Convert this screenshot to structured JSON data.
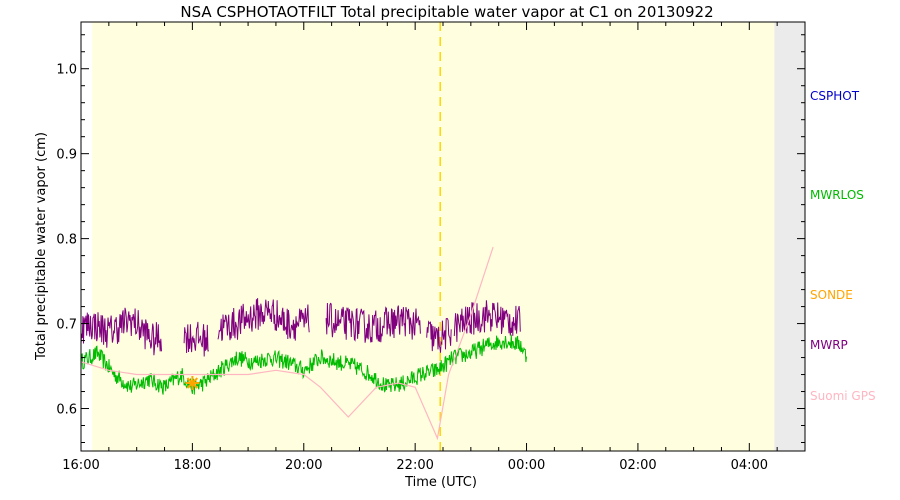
{
  "chart_data": {
    "type": "line",
    "title": "NSA CSPHOTAOTFILT Total precipitable water vapor at C1 on 20130922",
    "xlabel": "Time (UTC)",
    "ylabel": "Total precipitable water vapor (cm)",
    "x_unit": "hours UTC",
    "xlim": [
      16.0,
      29.0
    ],
    "ylim": [
      0.55,
      1.055
    ],
    "x_ticks": [
      {
        "value": 16,
        "label": "16:00"
      },
      {
        "value": 18,
        "label": "18:00"
      },
      {
        "value": 20,
        "label": "20:00"
      },
      {
        "value": 22,
        "label": "22:00"
      },
      {
        "value": 24,
        "label": "00:00"
      },
      {
        "value": 26,
        "label": "02:00"
      },
      {
        "value": 28,
        "label": "04:00"
      }
    ],
    "y_ticks": [
      {
        "value": 0.6,
        "label": "0.6"
      },
      {
        "value": 0.7,
        "label": "0.7"
      },
      {
        "value": 0.8,
        "label": "0.8"
      },
      {
        "value": 0.9,
        "label": "0.9"
      },
      {
        "value": 1.0,
        "label": "1.0"
      }
    ],
    "daylight_range": [
      16.2,
      28.45
    ],
    "night_range": [
      28.45,
      29.0
    ],
    "vertical_marker_x": 22.45,
    "grid": false,
    "legend_position": "right",
    "series": [
      {
        "name": "CSPHOT",
        "color": "#0000cc",
        "kind": "none",
        "points": []
      },
      {
        "name": "MWRLOS",
        "color": "#00bb00",
        "kind": "noisy",
        "noise": 0.01,
        "points": [
          [
            16.0,
            0.655
          ],
          [
            16.3,
            0.665
          ],
          [
            16.6,
            0.64
          ],
          [
            16.9,
            0.625
          ],
          [
            17.2,
            0.635
          ],
          [
            17.5,
            0.625
          ],
          [
            17.8,
            0.64
          ],
          [
            18.0,
            0.625
          ],
          [
            18.2,
            0.63
          ],
          [
            18.5,
            0.645
          ],
          [
            18.8,
            0.66
          ],
          [
            19.1,
            0.655
          ],
          [
            19.4,
            0.66
          ],
          [
            19.7,
            0.655
          ],
          [
            20.0,
            0.645
          ],
          [
            20.3,
            0.66
          ],
          [
            20.6,
            0.655
          ],
          [
            20.9,
            0.65
          ],
          [
            21.2,
            0.64
          ],
          [
            21.5,
            0.625
          ],
          [
            21.8,
            0.63
          ],
          [
            22.1,
            0.64
          ],
          [
            22.4,
            0.645
          ],
          [
            22.7,
            0.66
          ],
          [
            23.0,
            0.665
          ],
          [
            23.3,
            0.675
          ],
          [
            23.6,
            0.68
          ],
          [
            23.9,
            0.675
          ],
          [
            24.0,
            0.66
          ]
        ]
      },
      {
        "name": "SONDE",
        "color": "#ffa500",
        "kind": "marker",
        "points": [
          [
            18.0,
            0.63
          ]
        ]
      },
      {
        "name": "MWRP",
        "color": "#800080",
        "kind": "noisy",
        "noise": 0.02,
        "points": [
          [
            16.0,
            0.695
          ],
          [
            16.2,
            0.7
          ],
          [
            16.5,
            0.69
          ],
          [
            16.9,
            0.705
          ],
          [
            17.3,
            0.68
          ],
          [
            17.6,
            0.69
          ],
          [
            17.9,
            0.685
          ],
          [
            18.3,
            0.68
          ],
          [
            18.5,
            0.695
          ],
          [
            18.8,
            0.7
          ],
          [
            19.1,
            0.71
          ],
          [
            19.4,
            0.715
          ],
          [
            19.7,
            0.7
          ],
          [
            20.0,
            0.7
          ],
          [
            20.3,
            0.71
          ],
          [
            20.6,
            0.7
          ],
          [
            20.9,
            0.7
          ],
          [
            21.2,
            0.695
          ],
          [
            21.5,
            0.7
          ],
          [
            21.8,
            0.705
          ],
          [
            22.1,
            0.695
          ],
          [
            22.4,
            0.68
          ],
          [
            22.7,
            0.695
          ],
          [
            23.0,
            0.705
          ],
          [
            23.3,
            0.71
          ],
          [
            23.6,
            0.705
          ],
          [
            23.9,
            0.7
          ]
        ],
        "gaps": [
          [
            17.45,
            17.85
          ],
          [
            18.3,
            18.45
          ],
          [
            20.1,
            20.4
          ],
          [
            22.1,
            22.2
          ],
          [
            22.65,
            22.7
          ]
        ]
      },
      {
        "name": "Suomi GPS",
        "color": "#ffb6c1",
        "kind": "line",
        "points": [
          [
            16.0,
            0.655
          ],
          [
            16.5,
            0.645
          ],
          [
            17.0,
            0.64
          ],
          [
            17.5,
            0.64
          ],
          [
            18.0,
            0.64
          ],
          [
            18.5,
            0.64
          ],
          [
            19.0,
            0.64
          ],
          [
            19.5,
            0.645
          ],
          [
            20.0,
            0.64
          ],
          [
            20.3,
            0.625
          ],
          [
            20.8,
            0.59
          ],
          [
            21.3,
            0.625
          ],
          [
            21.7,
            0.63
          ],
          [
            22.0,
            0.625
          ],
          [
            22.4,
            0.565
          ],
          [
            22.6,
            0.64
          ],
          [
            23.0,
            0.71
          ],
          [
            23.4,
            0.79
          ]
        ]
      }
    ]
  }
}
